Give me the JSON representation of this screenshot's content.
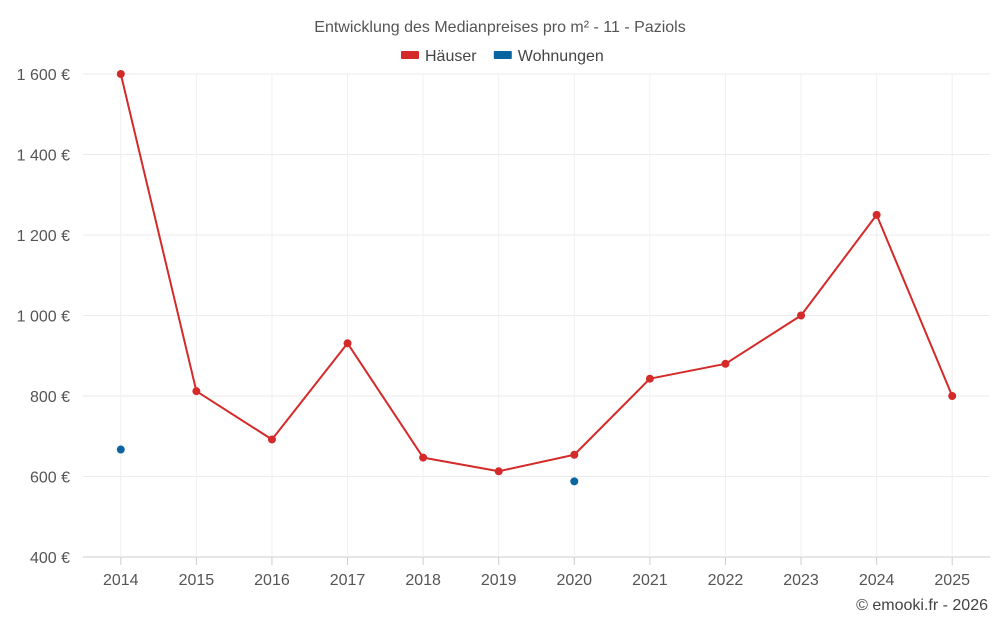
{
  "chart_data": {
    "type": "line",
    "title": "Entwicklung des Medianpreises pro m² - 11 - Paziols",
    "categories": [
      "2014",
      "2015",
      "2016",
      "2017",
      "2018",
      "2019",
      "2020",
      "2021",
      "2022",
      "2023",
      "2024",
      "2025"
    ],
    "series": [
      {
        "name": "Häuser",
        "color": "#d42a2a",
        "values": [
          1600,
          812,
          692,
          931,
          647,
          613,
          654,
          843,
          880,
          1000,
          1250,
          800
        ]
      },
      {
        "name": "Wohnungen",
        "color": "#0a64a0",
        "values": [
          667,
          null,
          null,
          null,
          null,
          null,
          588,
          null,
          null,
          null,
          null,
          null
        ]
      }
    ],
    "ylim": [
      400,
      1600
    ],
    "yticks": [
      400,
      600,
      800,
      1000,
      1200,
      1400,
      1600
    ],
    "ytick_labels": [
      "400 €",
      "600 €",
      "800 €",
      "1 000 €",
      "1 200 €",
      "1 400 €",
      "1 600 €"
    ],
    "xlabel": "",
    "ylabel": "",
    "grid": true,
    "legend_position": "top-center"
  },
  "footer": {
    "copyright": "© emooki.fr - 2026"
  }
}
